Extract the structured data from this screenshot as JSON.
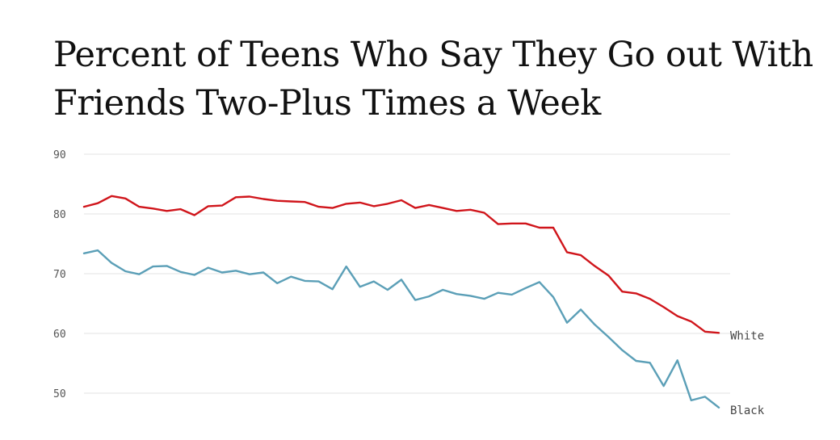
{
  "chart_data": {
    "type": "line",
    "title_lines": [
      "Percent of Teens Who Say They Go out With",
      "Friends Two-Plus Times a Week"
    ],
    "xlabel": "",
    "ylabel": "",
    "ylim": [
      50,
      90
    ],
    "yticks": [
      90,
      80,
      70,
      60,
      50
    ],
    "grid": true,
    "series": [
      {
        "name": "White",
        "color": "#d0151b",
        "values": [
          81.2,
          81.8,
          83.0,
          82.6,
          81.2,
          80.9,
          80.5,
          80.8,
          79.8,
          81.3,
          81.4,
          82.8,
          82.9,
          82.5,
          82.2,
          82.1,
          82.0,
          81.2,
          81.0,
          81.7,
          81.9,
          81.3,
          81.7,
          82.3,
          81.0,
          81.5,
          81.0,
          80.5,
          80.7,
          80.2,
          78.3,
          78.4,
          78.4,
          77.7,
          77.7,
          73.6,
          73.1,
          71.3,
          69.7,
          67.0,
          66.7,
          65.8,
          64.4,
          62.9,
          62.0,
          60.3,
          60.1
        ]
      },
      {
        "name": "Black",
        "color": "#5b9fb7",
        "values": [
          73.4,
          73.9,
          71.8,
          70.4,
          69.9,
          71.2,
          71.3,
          70.3,
          69.8,
          71.0,
          70.2,
          70.5,
          69.9,
          70.2,
          68.4,
          69.5,
          68.8,
          68.7,
          67.4,
          71.2,
          67.8,
          68.7,
          67.3,
          69.0,
          65.6,
          66.2,
          67.3,
          66.6,
          66.3,
          65.8,
          66.8,
          66.5,
          67.6,
          68.6,
          66.1,
          61.8,
          64.0,
          61.5,
          59.4,
          57.2,
          55.4,
          55.1,
          51.2,
          55.5,
          48.8,
          49.4,
          47.6
        ]
      }
    ]
  }
}
